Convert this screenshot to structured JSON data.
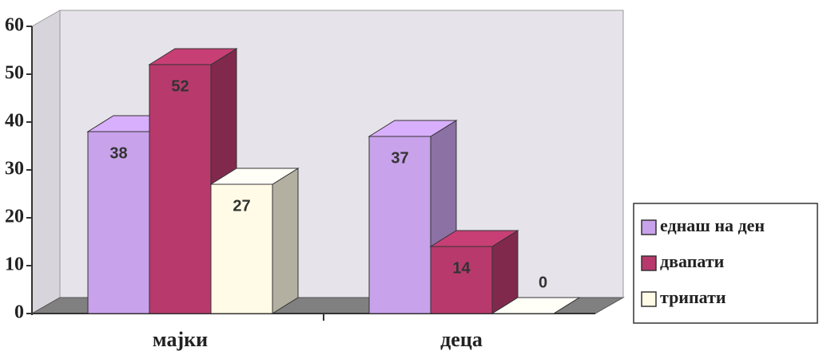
{
  "chart_data": {
    "type": "bar3d",
    "categories": [
      "мајки",
      "деца"
    ],
    "series": [
      {
        "name": "еднаш на ден",
        "color": "#c8a2ea",
        "values": [
          38,
          37
        ]
      },
      {
        "name": "двапати",
        "color": "#b83a6c",
        "values": [
          52,
          14
        ]
      },
      {
        "name": "трипати",
        "color": "#fffbe6",
        "values": [
          27,
          0
        ]
      }
    ],
    "ylim": [
      0,
      60
    ],
    "yticks": [
      0,
      10,
      20,
      30,
      40,
      50,
      60
    ],
    "legend": "right"
  }
}
